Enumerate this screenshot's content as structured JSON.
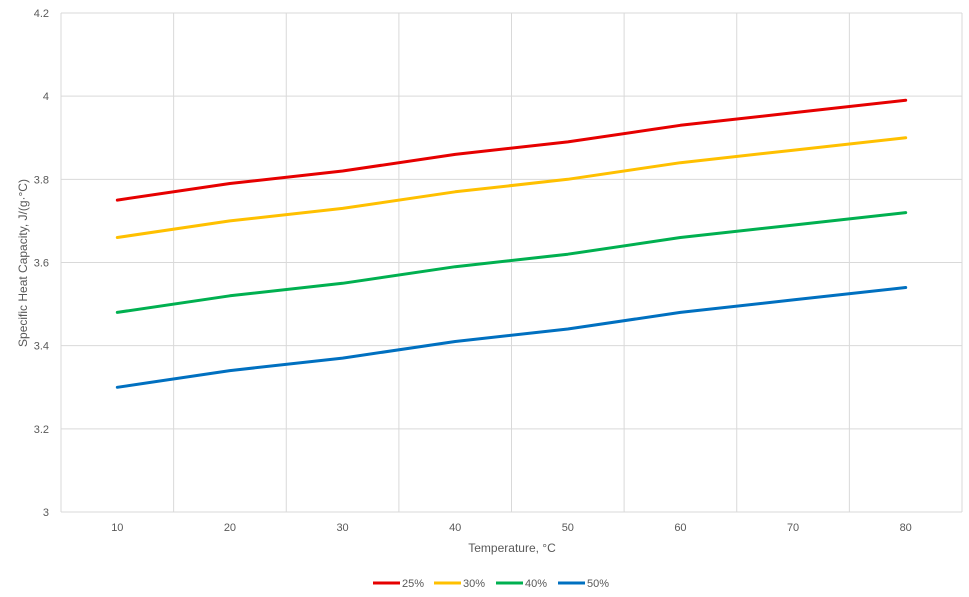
{
  "chart_data": {
    "type": "line",
    "title": "",
    "xlabel": "Temperature, °C",
    "ylabel": "Specific Heat Capacity, J/(g·°C)",
    "x": [
      10,
      20,
      30,
      40,
      50,
      60,
      70,
      80
    ],
    "x_tick_labels": [
      "10",
      "20",
      "30",
      "40",
      "50",
      "60",
      "70",
      "80"
    ],
    "ylim": [
      3,
      4.2
    ],
    "y_tick_labels": [
      "3",
      "3.2",
      "3.4",
      "3.6",
      "3.8",
      "4",
      "4.2"
    ],
    "grid": true,
    "legend_position": "bottom",
    "series": [
      {
        "name": "25%",
        "color": "#e60000",
        "values": [
          3.75,
          3.79,
          3.82,
          3.86,
          3.89,
          3.93,
          3.96,
          3.99
        ]
      },
      {
        "name": "30%",
        "color": "#ffc000",
        "values": [
          3.66,
          3.7,
          3.73,
          3.77,
          3.8,
          3.84,
          3.87,
          3.9
        ]
      },
      {
        "name": "40%",
        "color": "#00b050",
        "values": [
          3.48,
          3.52,
          3.55,
          3.59,
          3.62,
          3.66,
          3.69,
          3.72
        ]
      },
      {
        "name": "50%",
        "color": "#0070c0",
        "values": [
          3.3,
          3.34,
          3.37,
          3.41,
          3.44,
          3.48,
          3.51,
          3.54
        ]
      }
    ]
  }
}
